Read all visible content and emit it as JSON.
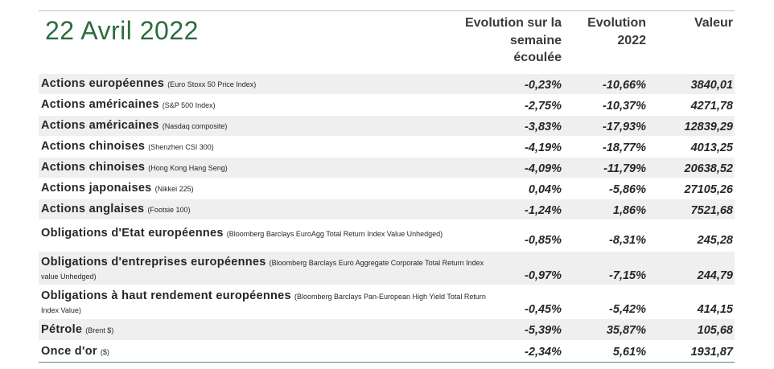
{
  "title": "22 Avril 2022",
  "columns": {
    "week": "Evolution sur la\nsemaine\nécoulée",
    "year": "Evolution\n2022",
    "value": "Valeur"
  },
  "rows": [
    {
      "name": "Actions européennes",
      "note": "(Euro Stoxx 50 Price Index)",
      "week": "-0,23%",
      "year": "-10,66%",
      "value": "3840,01"
    },
    {
      "name": "Actions américaines",
      "note": "(S&P 500  Index)",
      "week": "-2,75%",
      "year": "-10,37%",
      "value": "4271,78"
    },
    {
      "name": "Actions américaines",
      "note": "(Nasdaq composite)",
      "week": "-3,83%",
      "year": "-17,93%",
      "value": "12839,29"
    },
    {
      "name": "Actions chinoises",
      "note": "(Shenzhen CSI 300)",
      "week": "-4,19%",
      "year": "-18,77%",
      "value": "4013,25"
    },
    {
      "name": "Actions chinoises",
      "note": "(Hong Kong Hang Seng)",
      "week": "-4,09%",
      "year": "-11,79%",
      "value": "20638,52"
    },
    {
      "name": "Actions japonaises",
      "note": "(Nikkei 225)",
      "week": "0,04%",
      "year": "-5,86%",
      "value": "27105,26"
    },
    {
      "name": "Actions anglaises",
      "note": "(Footsie 100)",
      "week": "-1,24%",
      "year": "1,86%",
      "value": "7521,68"
    },
    {
      "name": "Obligations d'Etat européennes",
      "note": "(Bloomberg Barclays EuroAgg Total Return Index Value Unhedged)",
      "week": "-0,85%",
      "year": "-8,31%",
      "value": "245,28"
    },
    {
      "name": "Obligations d'entreprises européennes",
      "note": "(Bloomberg Barclays Euro Aggregate Corporate Total Return Index value Unhedged)",
      "week": "-0,97%",
      "year": "-7,15%",
      "value": "244,79"
    },
    {
      "name": "Obligations à haut rendement européennes",
      "note": "(Bloomberg Barclays Pan-European High Yield Total Return Index Value)",
      "week": "-0,45%",
      "year": "-5,42%",
      "value": "414,15"
    },
    {
      "name": "Pétrole",
      "note": "(Brent $)",
      "week": "-5,39%",
      "year": "35,87%",
      "value": "105,68"
    },
    {
      "name": "Once d'or",
      "note": "($)",
      "week": "-2,34%",
      "year": "5,61%",
      "value": "1931,87"
    }
  ]
}
